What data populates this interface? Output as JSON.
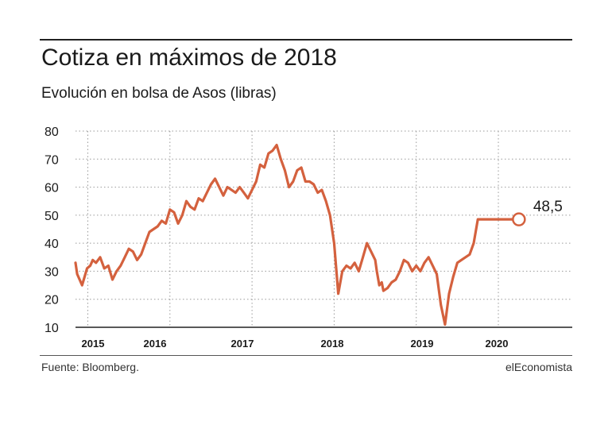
{
  "header": {
    "title": "Cotiza en máximos de 2018",
    "subtitle": "Evolución en bolsa de Asos (libras)"
  },
  "footer": {
    "source": "Fuente: Bloomberg.",
    "brand": "elEconomista"
  },
  "colors": {
    "line": "#d4613e",
    "grid": "#9a9a9a",
    "axis": "#222222",
    "text": "#1a1a1a"
  },
  "chart_data": {
    "type": "line",
    "title": "Cotiza en máximos de 2018",
    "subtitle": "Evolución en bolsa de Asos (libras)",
    "xlabel": "",
    "ylabel": "",
    "ylim": [
      10,
      80
    ],
    "yticks": [
      10,
      20,
      30,
      40,
      50,
      60,
      70,
      80
    ],
    "xlim": [
      2014.85,
      2020.9
    ],
    "xticks": [
      {
        "value": 2015,
        "label": "2015"
      },
      {
        "value": 2016,
        "label": "2016"
      },
      {
        "value": 2017,
        "label": "2017"
      },
      {
        "value": 2018,
        "label": "2018"
      },
      {
        "value": 2019,
        "label": "2019"
      },
      {
        "value": 2020,
        "label": "2020"
      }
    ],
    "grid": "horizontal and vertical dotted",
    "legend": "none",
    "annotation": {
      "x": 2020.25,
      "y": 48.5,
      "label": "48,5"
    },
    "series": [
      {
        "x": [
          2014.85,
          2014.87,
          2014.9,
          2014.93,
          2014.96,
          2014.99,
          2015.03,
          2015.06,
          2015.1,
          2015.15,
          2015.2,
          2015.25,
          2015.3,
          2015.35,
          2015.4,
          2015.45,
          2015.5,
          2015.55,
          2015.6,
          2015.65,
          2015.7,
          2015.75,
          2015.8,
          2015.85,
          2015.9,
          2015.95,
          2016.0,
          2016.05,
          2016.1,
          2016.15,
          2016.2,
          2016.25,
          2016.3,
          2016.35,
          2016.4,
          2016.45,
          2016.5,
          2016.55,
          2016.6,
          2016.65,
          2016.7,
          2016.75,
          2016.8,
          2016.85,
          2016.9,
          2016.95,
          2017.0,
          2017.05,
          2017.1,
          2017.15,
          2017.2,
          2017.25,
          2017.3,
          2017.35,
          2017.4,
          2017.45,
          2017.5,
          2017.55,
          2017.6,
          2017.65,
          2017.7,
          2017.75,
          2017.8,
          2017.85,
          2017.9,
          2017.95,
          2018.0,
          2018.05,
          2018.1,
          2018.15,
          2018.2,
          2018.25,
          2018.3,
          2018.35,
          2018.4,
          2018.45,
          2018.5,
          2018.52,
          2018.55,
          2018.58,
          2018.6,
          2018.65,
          2018.7,
          2018.75,
          2018.8,
          2018.85,
          2018.9,
          2018.95,
          2019.0,
          2019.05,
          2019.1,
          2019.15,
          2019.2,
          2019.25,
          2019.3,
          2019.35,
          2019.4,
          2019.45,
          2019.5,
          2019.55,
          2019.6,
          2019.65,
          2019.7,
          2019.75,
          2019.8,
          2019.85,
          2019.9,
          2019.95,
          2020.0,
          2020.02,
          2020.05,
          2020.1,
          2020.15,
          2020.2,
          2020.25,
          2020.22,
          2020.25
        ],
        "values": [
          33,
          29,
          27,
          25,
          28,
          31,
          32,
          34,
          33,
          35,
          31,
          32,
          27,
          30,
          32,
          35,
          38,
          37,
          34,
          36,
          40,
          44,
          45,
          46,
          48,
          47,
          52,
          51,
          47,
          50,
          55,
          53,
          52,
          56,
          55,
          58,
          61,
          63,
          60,
          57,
          60,
          59,
          58,
          60,
          58,
          56,
          59,
          62,
          68,
          67,
          72,
          73,
          75,
          70,
          66,
          60,
          62,
          66,
          67,
          62,
          62,
          61,
          58,
          59,
          55,
          50,
          40,
          22,
          30,
          32,
          31,
          33,
          30,
          35,
          40,
          37,
          34,
          30,
          25,
          26,
          23,
          24,
          26,
          27,
          30,
          34,
          33,
          30,
          32,
          30,
          33,
          35,
          32,
          29,
          18,
          11,
          22,
          28,
          33,
          34,
          35,
          36,
          40,
          48.5,
          48.5,
          48.5,
          48.5,
          48.5,
          48.5,
          48.5,
          48.5,
          48.5,
          48.5,
          48.5,
          48.5,
          48.5,
          48.5
        ]
      }
    ]
  }
}
